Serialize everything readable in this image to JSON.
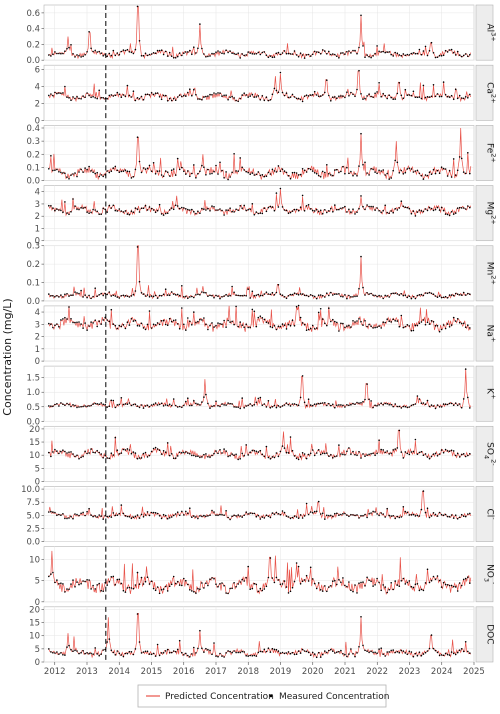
{
  "chart_data": {
    "type": "line",
    "ylabel": "Concentration (mg/L)",
    "xlabel": "",
    "x_ticks": [
      "2012",
      "2013",
      "2014",
      "2015",
      "2016",
      "2017",
      "2018",
      "2019",
      "2020",
      "2021",
      "2022",
      "2023",
      "2024",
      "2025"
    ],
    "xlim": [
      "2011-09",
      "2025-01"
    ],
    "vline_date": "2013-08",
    "grid": true,
    "legend": {
      "position": "bottom",
      "entries": [
        "Predicted Concentration",
        "Measured Concentration"
      ]
    },
    "colors": {
      "predicted": "#e8534a",
      "measured": "#000000",
      "panel_strip": "#ededed",
      "grid": "#e5e5e5"
    },
    "panels": [
      {
        "key": "al",
        "label": "Al",
        "sup": "3+",
        "ylim": [
          0,
          0.7
        ],
        "yticks": [
          "0.0",
          "0.2",
          "0.4",
          "0.6"
        ],
        "base": 0.08,
        "noise": 0.03,
        "spikes": [
          [
            "2012-06",
            0.3
          ],
          [
            "2013-02",
            0.35
          ],
          [
            "2014-08",
            0.68
          ],
          [
            "2016-07",
            0.45
          ],
          [
            "2021-07",
            0.57
          ],
          [
            "2023-09",
            0.22
          ]
        ]
      },
      {
        "key": "ca",
        "label": "Ca",
        "sup": "2+",
        "ylim": [
          0,
          6.5
        ],
        "yticks": [
          "0",
          "2",
          "4",
          "6"
        ],
        "base": 2.8,
        "noise": 0.3,
        "spikes": [
          [
            "2018-11",
            5.2
          ],
          [
            "2019-01",
            5.5
          ],
          [
            "2020-06",
            4.8
          ],
          [
            "2021-06",
            5.8
          ],
          [
            "2022-09",
            4.5
          ]
        ]
      },
      {
        "key": "fe",
        "label": "Fe",
        "sup": "2+",
        "ylim": [
          0,
          0.42
        ],
        "yticks": [
          "0.0",
          "0.1",
          "0.2",
          "0.3",
          "0.4"
        ],
        "base": 0.06,
        "noise": 0.03,
        "spikes": [
          [
            "2014-08",
            0.33
          ],
          [
            "2016-08",
            0.2
          ],
          [
            "2021-07",
            0.36
          ],
          [
            "2022-08",
            0.3
          ],
          [
            "2024-08",
            0.4
          ]
        ]
      },
      {
        "key": "mg",
        "label": "Mg",
        "sup": "2+",
        "ylim": [
          0,
          4.5
        ],
        "yticks": [
          "0",
          "1",
          "2",
          "3",
          "4"
        ],
        "base": 2.5,
        "noise": 0.25,
        "spikes": [
          [
            "2019-01",
            4.2
          ],
          [
            "2021-07",
            3.6
          ],
          [
            "2022-10",
            3.2
          ]
        ]
      },
      {
        "key": "mn",
        "label": "Mn",
        "sup": "2+",
        "ylim": [
          0,
          0.3
        ],
        "yticks": [
          "0.0",
          "0.1",
          "0.2",
          "0.3"
        ],
        "base": 0.03,
        "noise": 0.01,
        "spikes": [
          [
            "2014-08",
            0.3
          ],
          [
            "2016-08",
            0.08
          ],
          [
            "2018-12",
            0.09
          ],
          [
            "2021-07",
            0.24
          ]
        ]
      },
      {
        "key": "na",
        "label": "Na",
        "sup": "+",
        "ylim": [
          0,
          4.5
        ],
        "yticks": [
          "0",
          "1",
          "2",
          "3",
          "4"
        ],
        "base": 3.0,
        "noise": 0.35,
        "spikes": []
      },
      {
        "key": "k",
        "label": "K",
        "sup": "+",
        "ylim": [
          0,
          1.9
        ],
        "yticks": [
          "0.0",
          "0.5",
          "1.0",
          "1.5"
        ],
        "base": 0.55,
        "noise": 0.06,
        "spikes": [
          [
            "2016-09",
            1.45
          ],
          [
            "2019-09",
            1.55
          ],
          [
            "2021-09",
            1.3
          ],
          [
            "2024-10",
            1.8
          ]
        ]
      },
      {
        "key": "so4",
        "label": "SO",
        "sub": "4",
        "sup": "2-",
        "ylim": [
          0,
          21
        ],
        "yticks": [
          "0",
          "5",
          "10",
          "15",
          "20"
        ],
        "base": 10.5,
        "noise": 1.2,
        "spikes": [
          [
            "2019-02",
            19
          ],
          [
            "2022-09",
            19.5
          ]
        ]
      },
      {
        "key": "cl",
        "label": "Cl",
        "sup": "-",
        "ylim": [
          0,
          10.5
        ],
        "yticks": [
          "0.0",
          "2.5",
          "5.0",
          "7.5",
          "10.0"
        ],
        "base": 5.0,
        "noise": 0.4,
        "spikes": [
          [
            "2020-03",
            7.5
          ],
          [
            "2023-06",
            9.6
          ]
        ]
      },
      {
        "key": "no3",
        "label": "NO",
        "sub": "3",
        "sup": "-",
        "ylim": [
          0,
          13
        ],
        "yticks": [
          "0",
          "5",
          "10"
        ],
        "base": 4.0,
        "noise": 1.2,
        "spikes": [
          [
            "2011-12",
            12
          ],
          [
            "2018-09",
            10.5
          ],
          [
            "2019-07",
            9
          ]
        ]
      },
      {
        "key": "doc",
        "label": "DOC",
        "ylim": [
          0,
          21
        ],
        "yticks": [
          "0",
          "5",
          "10",
          "15",
          "20"
        ],
        "base": 3.5,
        "noise": 1.0,
        "spikes": [
          [
            "2012-06",
            11
          ],
          [
            "2013-09",
            17
          ],
          [
            "2014-08",
            18.5
          ],
          [
            "2016-07",
            12
          ],
          [
            "2021-07",
            17
          ],
          [
            "2023-09",
            10
          ]
        ]
      }
    ]
  }
}
